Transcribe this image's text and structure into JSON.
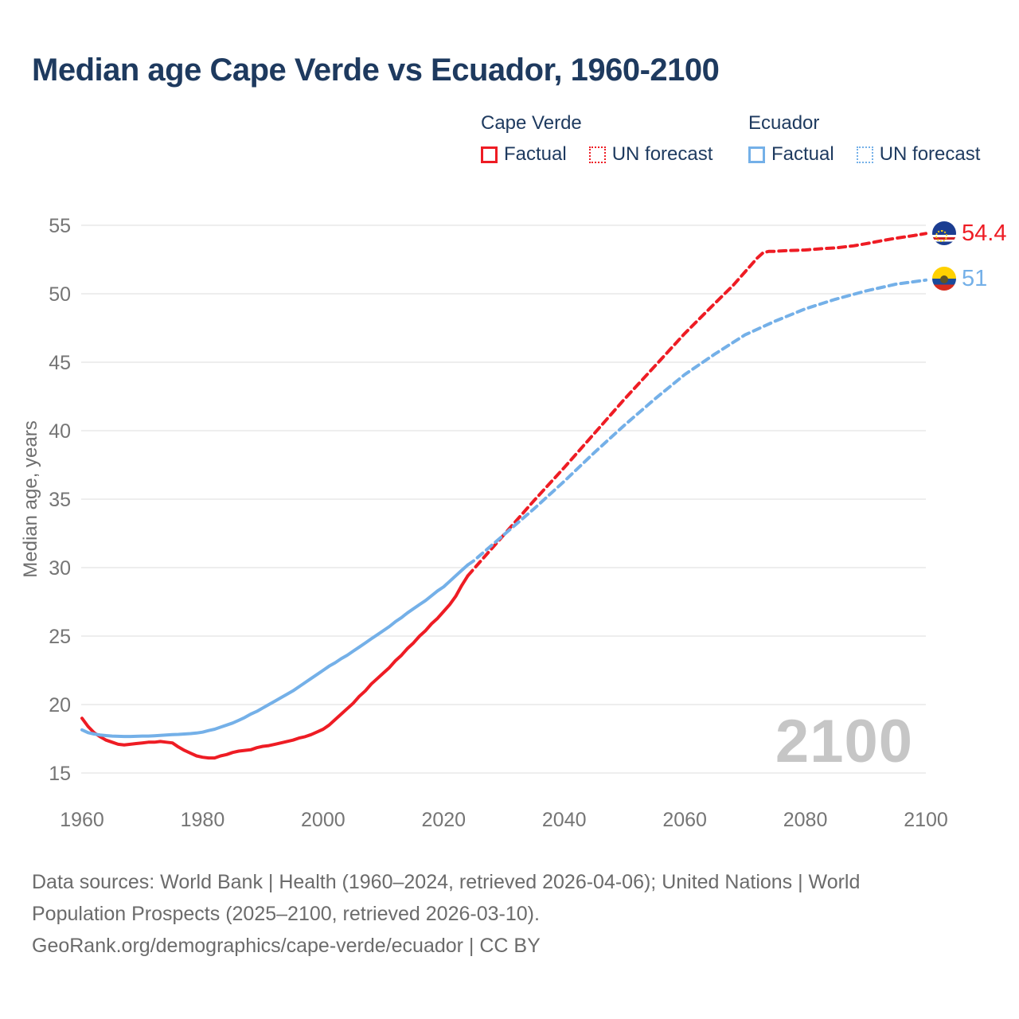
{
  "title": "Median age Cape Verde vs Ecuador, 1960-2100",
  "colors": {
    "cape_verde": "#ee1c24",
    "ecuador": "#74b0e8",
    "title_text": "#1e3a5f",
    "tick_text": "#757575",
    "gridline": "#e8e8e8",
    "watermark": "#c6c6c6",
    "footer_text": "#6b6b6b"
  },
  "legend": {
    "groups": [
      {
        "name": "Cape Verde",
        "items": [
          {
            "label": "Factual",
            "style": "solid"
          },
          {
            "label": "UN forecast",
            "style": "dotted"
          }
        ]
      },
      {
        "name": "Ecuador",
        "items": [
          {
            "label": "Factual",
            "style": "solid"
          },
          {
            "label": "UN forecast",
            "style": "dotted"
          }
        ]
      }
    ]
  },
  "y_axis": {
    "title": "Median age, years",
    "ticks": [
      15,
      20,
      25,
      30,
      35,
      40,
      45,
      50,
      55
    ]
  },
  "x_axis": {
    "ticks": [
      1960,
      1980,
      2000,
      2020,
      2040,
      2060,
      2080,
      2100
    ]
  },
  "watermark": "2100",
  "end_labels": [
    {
      "country": "Cape Verde",
      "value": "54.4",
      "flag": "cape-verde"
    },
    {
      "country": "Ecuador",
      "value": "51",
      "flag": "ecuador"
    }
  ],
  "footer": {
    "lines": [
      "Data sources: World Bank | Health (1960–2024, retrieved 2026-04-06); United Nations | World",
      "Population Prospects (2025–2100, retrieved 2026-03-10).",
      "GeoRank.org/demographics/cape-verde/ecuador | CC BY"
    ]
  },
  "chart_data": {
    "type": "line",
    "title": "Median age Cape Verde vs Ecuador, 1960-2100",
    "xlabel": "",
    "ylabel": "Median age, years",
    "x_range": [
      1960,
      2100
    ],
    "ylim": [
      15,
      55
    ],
    "grid": "horizontal",
    "legend_position": "top",
    "series": [
      {
        "name": "Cape Verde Factual",
        "color": "#ee1c24",
        "style": "solid",
        "points": [
          [
            1960,
            19.0
          ],
          [
            1961,
            18.4
          ],
          [
            1962,
            17.95
          ],
          [
            1963,
            17.65
          ],
          [
            1964,
            17.4
          ],
          [
            1965,
            17.25
          ],
          [
            1966,
            17.1
          ],
          [
            1967,
            17.05
          ],
          [
            1968,
            17.1
          ],
          [
            1969,
            17.15
          ],
          [
            1970,
            17.2
          ],
          [
            1971,
            17.25
          ],
          [
            1972,
            17.25
          ],
          [
            1973,
            17.3
          ],
          [
            1974,
            17.25
          ],
          [
            1975,
            17.2
          ],
          [
            1976,
            16.9
          ],
          [
            1977,
            16.65
          ],
          [
            1978,
            16.45
          ],
          [
            1979,
            16.25
          ],
          [
            1980,
            16.15
          ],
          [
            1981,
            16.1
          ],
          [
            1982,
            16.1
          ],
          [
            1983,
            16.25
          ],
          [
            1984,
            16.35
          ],
          [
            1985,
            16.5
          ],
          [
            1986,
            16.6
          ],
          [
            1987,
            16.65
          ],
          [
            1988,
            16.7
          ],
          [
            1989,
            16.85
          ],
          [
            1990,
            16.95
          ],
          [
            1991,
            17.0
          ],
          [
            1992,
            17.1
          ],
          [
            1993,
            17.2
          ],
          [
            1994,
            17.3
          ],
          [
            1995,
            17.4
          ],
          [
            1996,
            17.55
          ],
          [
            1997,
            17.65
          ],
          [
            1998,
            17.8
          ],
          [
            1999,
            18.0
          ],
          [
            2000,
            18.2
          ],
          [
            2001,
            18.5
          ],
          [
            2002,
            18.9
          ],
          [
            2003,
            19.3
          ],
          [
            2004,
            19.7
          ],
          [
            2005,
            20.1
          ],
          [
            2006,
            20.6
          ],
          [
            2007,
            21.0
          ],
          [
            2008,
            21.5
          ],
          [
            2009,
            21.9
          ],
          [
            2010,
            22.3
          ],
          [
            2011,
            22.7
          ],
          [
            2012,
            23.2
          ],
          [
            2013,
            23.6
          ],
          [
            2014,
            24.1
          ],
          [
            2015,
            24.5
          ],
          [
            2016,
            25.0
          ],
          [
            2017,
            25.4
          ],
          [
            2018,
            25.9
          ],
          [
            2019,
            26.3
          ],
          [
            2020,
            26.8
          ],
          [
            2021,
            27.3
          ],
          [
            2022,
            27.9
          ],
          [
            2023,
            28.7
          ],
          [
            2024,
            29.4
          ]
        ]
      },
      {
        "name": "Cape Verde UN forecast",
        "color": "#ee1c24",
        "style": "dashed",
        "points": [
          [
            2024,
            29.4
          ],
          [
            2025,
            29.9
          ],
          [
            2030,
            32.4
          ],
          [
            2035,
            34.9
          ],
          [
            2040,
            37.3
          ],
          [
            2045,
            39.8
          ],
          [
            2050,
            42.3
          ],
          [
            2055,
            44.7
          ],
          [
            2060,
            47.1
          ],
          [
            2065,
            49.3
          ],
          [
            2068,
            50.6
          ],
          [
            2070,
            51.6
          ],
          [
            2072,
            52.6
          ],
          [
            2073,
            53.0
          ],
          [
            2074,
            53.1
          ],
          [
            2075,
            53.1
          ],
          [
            2077,
            53.15
          ],
          [
            2080,
            53.2
          ],
          [
            2083,
            53.3
          ],
          [
            2085,
            53.35
          ],
          [
            2088,
            53.5
          ],
          [
            2090,
            53.65
          ],
          [
            2093,
            53.9
          ],
          [
            2095,
            54.05
          ],
          [
            2098,
            54.25
          ],
          [
            2100,
            54.4
          ]
        ]
      },
      {
        "name": "Ecuador Factual",
        "color": "#74b0e8",
        "style": "solid",
        "points": [
          [
            1960,
            18.15
          ],
          [
            1961,
            17.95
          ],
          [
            1962,
            17.85
          ],
          [
            1963,
            17.78
          ],
          [
            1964,
            17.73
          ],
          [
            1965,
            17.7
          ],
          [
            1966,
            17.68
          ],
          [
            1967,
            17.67
          ],
          [
            1968,
            17.67
          ],
          [
            1969,
            17.68
          ],
          [
            1970,
            17.7
          ],
          [
            1971,
            17.7
          ],
          [
            1972,
            17.72
          ],
          [
            1973,
            17.75
          ],
          [
            1974,
            17.78
          ],
          [
            1975,
            17.8
          ],
          [
            1976,
            17.82
          ],
          [
            1977,
            17.85
          ],
          [
            1978,
            17.88
          ],
          [
            1979,
            17.92
          ],
          [
            1980,
            17.98
          ],
          [
            1981,
            18.1
          ],
          [
            1982,
            18.2
          ],
          [
            1983,
            18.35
          ],
          [
            1984,
            18.5
          ],
          [
            1985,
            18.65
          ],
          [
            1986,
            18.85
          ],
          [
            1987,
            19.05
          ],
          [
            1988,
            19.3
          ],
          [
            1989,
            19.5
          ],
          [
            1990,
            19.75
          ],
          [
            1991,
            20.0
          ],
          [
            1992,
            20.25
          ],
          [
            1993,
            20.5
          ],
          [
            1994,
            20.75
          ],
          [
            1995,
            21.0
          ],
          [
            1996,
            21.3
          ],
          [
            1997,
            21.6
          ],
          [
            1998,
            21.9
          ],
          [
            1999,
            22.2
          ],
          [
            2000,
            22.5
          ],
          [
            2001,
            22.8
          ],
          [
            2002,
            23.05
          ],
          [
            2003,
            23.35
          ],
          [
            2004,
            23.6
          ],
          [
            2005,
            23.9
          ],
          [
            2006,
            24.2
          ],
          [
            2007,
            24.5
          ],
          [
            2008,
            24.8
          ],
          [
            2009,
            25.1
          ],
          [
            2010,
            25.4
          ],
          [
            2011,
            25.7
          ],
          [
            2012,
            26.05
          ],
          [
            2013,
            26.35
          ],
          [
            2014,
            26.7
          ],
          [
            2015,
            27.0
          ],
          [
            2016,
            27.3
          ],
          [
            2017,
            27.6
          ],
          [
            2018,
            27.95
          ],
          [
            2019,
            28.3
          ],
          [
            2020,
            28.6
          ],
          [
            2021,
            29.0
          ],
          [
            2022,
            29.4
          ],
          [
            2023,
            29.8
          ],
          [
            2024,
            30.2
          ]
        ]
      },
      {
        "name": "Ecuador UN forecast",
        "color": "#74b0e8",
        "style": "dashed",
        "points": [
          [
            2024,
            30.2
          ],
          [
            2025,
            30.5
          ],
          [
            2030,
            32.4
          ],
          [
            2035,
            34.3
          ],
          [
            2040,
            36.3
          ],
          [
            2045,
            38.4
          ],
          [
            2050,
            40.4
          ],
          [
            2055,
            42.3
          ],
          [
            2060,
            44.1
          ],
          [
            2065,
            45.6
          ],
          [
            2070,
            47.0
          ],
          [
            2075,
            48.0
          ],
          [
            2080,
            48.9
          ],
          [
            2085,
            49.6
          ],
          [
            2090,
            50.2
          ],
          [
            2095,
            50.7
          ],
          [
            2100,
            51.0
          ]
        ]
      }
    ]
  }
}
